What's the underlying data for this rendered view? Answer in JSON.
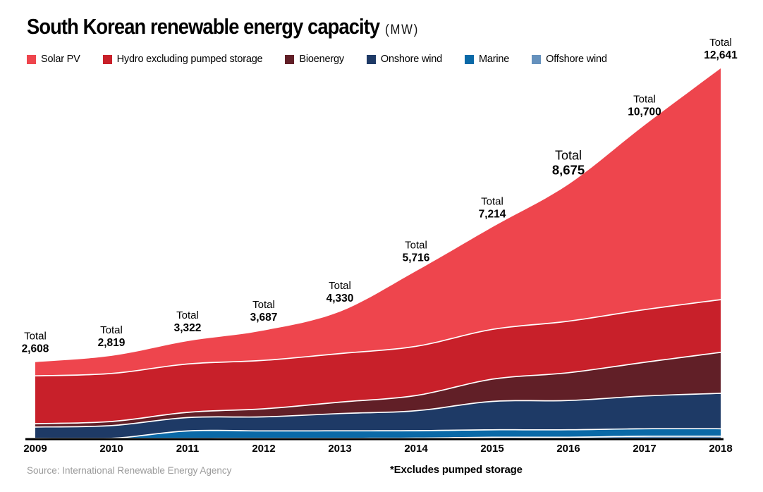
{
  "header": {
    "title": "South Korean renewable energy capacity",
    "unit": "(MW)"
  },
  "legend": [
    {
      "label": "Solar PV",
      "color": "#EE454D"
    },
    {
      "label": "Hydro excluding pumped storage",
      "color": "#C8202A"
    },
    {
      "label": "Bioenergy",
      "color": "#611F27"
    },
    {
      "label": "Onshore wind",
      "color": "#1E3A66"
    },
    {
      "label": "Marine",
      "color": "#0A69A7"
    },
    {
      "label": "Offshore wind",
      "color": "#6591BD"
    }
  ],
  "chart_data": {
    "type": "area",
    "stacked": true,
    "title": "South Korean renewable energy capacity (MW)",
    "xlabel": "",
    "ylabel": "MW",
    "ylim": [
      0,
      12641
    ],
    "grid": false,
    "legend_position": "top",
    "x": [
      2009,
      2010,
      2011,
      2012,
      2013,
      2014,
      2015,
      2016,
      2017,
      2018
    ],
    "x_tick_labels": [
      "2009",
      "2010",
      "2011",
      "2012",
      "2013",
      "2014",
      "2015",
      "2016",
      "2017",
      "2018"
    ],
    "stack_order_bottom_to_top": [
      "Offshore wind",
      "Marine",
      "Onshore wind",
      "Bioenergy",
      "Hydro excluding pumped storage",
      "Solar PV"
    ],
    "series": [
      {
        "name": "Solar PV",
        "color": "#EE454D",
        "values": [
          470,
          600,
          780,
          1020,
          1430,
          2570,
          3490,
          4670,
          6300,
          7900
        ]
      },
      {
        "name": "Hydro excluding pumped storage",
        "color": "#C8202A",
        "values": [
          1635,
          1640,
          1650,
          1655,
          1660,
          1680,
          1700,
          1760,
          1800,
          1800
        ]
      },
      {
        "name": "Bioenergy",
        "color": "#611F27",
        "values": [
          115,
          140,
          180,
          275,
          390,
          520,
          760,
          950,
          1150,
          1400
        ]
      },
      {
        "name": "Onshore wind",
        "color": "#1E3A66",
        "values": [
          387,
          437,
          456,
          480,
          590,
          680,
          970,
          1000,
          1120,
          1210
        ]
      },
      {
        "name": "Marine",
        "color": "#0A69A7",
        "values": [
          1,
          1,
          255,
          255,
          255,
          255,
          255,
          255,
          255,
          255
        ]
      },
      {
        "name": "Offshore wind",
        "color": "#6591BD",
        "values": [
          0,
          1,
          1,
          2,
          5,
          11,
          39,
          40,
          75,
          76
        ]
      }
    ],
    "totals": [
      2608,
      2819,
      3322,
      3687,
      4330,
      5716,
      7214,
      8675,
      10700,
      12641
    ],
    "total_labels": [
      {
        "word": "Total",
        "value": "2,608"
      },
      {
        "word": "Total",
        "value": "2,819"
      },
      {
        "word": "Total",
        "value": "3,322"
      },
      {
        "word": "Total",
        "value": "3,687"
      },
      {
        "word": "Total",
        "value": "4,330"
      },
      {
        "word": "Total",
        "value": "5,716"
      },
      {
        "word": "Total",
        "value": "7,214"
      },
      {
        "word": "Total",
        "value": "8,675",
        "emphasis": true
      },
      {
        "word": "Total",
        "value": "10,700"
      },
      {
        "word": "Total",
        "value": "12,641"
      }
    ],
    "annotations": {
      "separator_color": "#FFFFFF",
      "axis_color": "#000000"
    }
  },
  "footer": {
    "source": "Source: International Renewable Energy Agency",
    "note": "*Excludes pumped storage"
  }
}
